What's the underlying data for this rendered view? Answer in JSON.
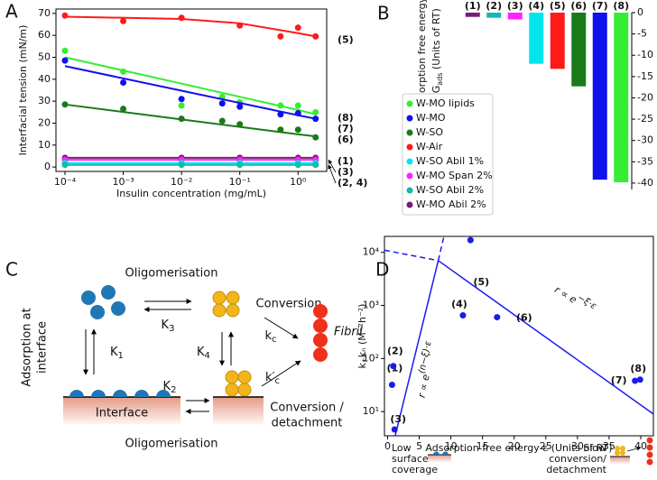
{
  "panel_labels": [
    "A",
    "B",
    "C",
    "D"
  ],
  "chart_data": [
    {
      "type": "line",
      "xlabel": "Insulin concentration (mg/mL)",
      "ylabel": "Interfacial tension (mN/m)",
      "log_x": true,
      "x": [
        0.0001,
        0.001,
        0.01,
        0.05,
        0.1,
        0.5,
        1,
        2
      ],
      "fit_x": [
        0.0001,
        0.01,
        0.1,
        1,
        2
      ],
      "xlim": [
        7e-05,
        3.1
      ],
      "ylim": [
        -2,
        72
      ],
      "xticks": [
        {
          "value": 0.0001,
          "label": "10⁻⁴"
        },
        {
          "value": 0.001,
          "label": "10⁻³"
        },
        {
          "value": 0.01,
          "label": "10⁻²"
        },
        {
          "value": 0.1,
          "label": "10⁻¹"
        },
        {
          "value": 1,
          "label": "10⁰"
        }
      ],
      "yticks": [
        0,
        10,
        20,
        30,
        40,
        50,
        60,
        70
      ],
      "series": [
        {
          "color": "#ff1a1a",
          "label": "(5)",
          "values": [
            69,
            66.5,
            68,
            null,
            64.5,
            59.5,
            63.5,
            59.5
          ],
          "fit_values": [
            68.5,
            67.5,
            65.5,
            61,
            59.5
          ]
        },
        {
          "color": "#33ee33",
          "label": "(8)",
          "values": [
            53,
            43.5,
            28,
            32,
            29.5,
            28,
            28,
            25
          ],
          "fit_values": [
            50,
            38,
            32,
            26,
            24
          ]
        },
        {
          "color": "#1010ee",
          "label": "(7)",
          "values": [
            48.5,
            38.5,
            31,
            29,
            27.5,
            24,
            24.5,
            22
          ],
          "fit_values": [
            46,
            34.8,
            29.2,
            23.6,
            22
          ]
        },
        {
          "color": "#1a7a1a",
          "label": "(6)",
          "values": [
            28.5,
            26.5,
            22,
            21,
            19.5,
            17,
            17,
            13.5
          ],
          "fit_values": [
            28.5,
            21.7,
            18.3,
            14.9,
            14
          ]
        },
        {
          "color": "#7a1a7a",
          "label": "(1)",
          "values": [
            4.2,
            null,
            4.2,
            null,
            4.2,
            null,
            4.2,
            4.2
          ],
          "fit_values": [
            4.2,
            4.2,
            4.2,
            4.2,
            4.2
          ]
        },
        {
          "color": "#ff22ff",
          "label": "(3)",
          "values": [
            3.3,
            null,
            3.3,
            null,
            3.3,
            null,
            3.3,
            3.3
          ],
          "fit_values": [
            3.3,
            3.3,
            3.3,
            3.3,
            3.3
          ]
        },
        {
          "color": "#00e5ee",
          "values": [
            1.8,
            null,
            1.8,
            null,
            1.8,
            null,
            1.8,
            1.8
          ],
          "fit_values": [
            1.8,
            1.8,
            1.8,
            1.8,
            1.8
          ]
        },
        {
          "color": "#11bbaa",
          "label": "(2, 4)",
          "values": [
            1,
            null,
            1,
            null,
            1,
            null,
            1,
            1
          ],
          "fit_values": [
            1,
            1,
            1,
            1,
            1
          ]
        }
      ]
    },
    {
      "type": "bar",
      "ylabel": "Adsorption free energy",
      "ylabel_2": [
        "ΔG",
        "ads",
        " (Units of RT)"
      ],
      "categories": [
        "(1)",
        "(2)",
        "(3)",
        "(4)",
        "(5)",
        "(6)",
        "(7)",
        "(8)"
      ],
      "values": [
        -1,
        -1.2,
        -1.6,
        -12,
        -13.2,
        -17.3,
        -39.2,
        -39.8
      ],
      "colors": [
        "#7a1a7a",
        "#11bbaa",
        "#ff22ff",
        "#00e5ee",
        "#ff1a1a",
        "#1a7a1a",
        "#1010ee",
        "#33ee33"
      ],
      "ylim": [
        -41.5,
        0
      ],
      "yticks": [
        0,
        -5,
        -10,
        -15,
        -20,
        -25,
        -30,
        -35,
        -40
      ],
      "legend": [
        {
          "name": "W-MO lipids",
          "color": "#33ee33"
        },
        {
          "name": "W-MO",
          "color": "#1010ee"
        },
        {
          "name": "W-SO",
          "color": "#1a7a1a"
        },
        {
          "name": "W-Air",
          "color": "#ff1a1a"
        },
        {
          "name": "W-SO Abil 1%",
          "color": "#00e5ee"
        },
        {
          "name": "W-MO Span 2%",
          "color": "#ff22ff"
        },
        {
          "name": "W-SO Abil 2%",
          "color": "#11bbaa"
        },
        {
          "name": "W-MO Abil 2%",
          "color": "#7a1a7a"
        }
      ]
    },
    {
      "type": "scatter",
      "log_y": true,
      "xlabel": "Adsorption free energy ε (Units of RT)",
      "ylabel": "k₊kₙ (M⁻²h⁻²)",
      "color": "#1a1aee",
      "x": [
        0.7,
        0.9,
        1.1,
        11.9,
        13.1,
        17.3,
        39.1,
        39.9
      ],
      "values": [
        32,
        72,
        4.6,
        650,
        17000,
        600,
        38,
        40
      ],
      "point_labels": [
        "(1)",
        "(2)",
        "(3)",
        "(4)",
        "(5)",
        "(6)",
        "(7)",
        "(8)"
      ],
      "xlim": [
        -0.5,
        42
      ],
      "ylim": [
        3.5,
        20000
      ],
      "xticks": [
        0,
        5,
        10,
        15,
        20,
        25,
        30,
        35,
        40
      ],
      "yticks": [
        {
          "value": 10,
          "label": "10¹"
        },
        {
          "value": 100,
          "label": "10²"
        },
        {
          "value": 1000,
          "label": "10³"
        },
        {
          "value": 10000,
          "label": "10⁴"
        }
      ],
      "fit_lines": [
        {
          "x": [
            1.2,
            8
          ],
          "values": [
            3.5,
            7000
          ],
          "dashed": false
        },
        {
          "x": [
            8,
            8.9
          ],
          "values": [
            7000,
            20000
          ],
          "dashed": true
        },
        {
          "x": [
            8,
            42
          ],
          "values": [
            7000,
            9
          ],
          "dashed": false
        },
        {
          "x": [
            -0.5,
            8
          ],
          "values": [
            11000,
            7000
          ],
          "dashed": true
        }
      ],
      "annotations": [
        {
          "text": "r ∝ e",
          "exponent": "(n−ξ)·ε"
        },
        {
          "text": "r ∝ e",
          "exponent": "−ξ·ε"
        }
      ]
    }
  ],
  "diagram": {
    "oligomerisation_top": "Oligomerisation",
    "oligomerisation_bottom": "Oligomerisation",
    "adsorption": [
      "Adsorption at",
      "interface"
    ],
    "interface": "Interface",
    "conversion": "Conversion",
    "conversion_detachment": [
      "Conversion /",
      "detachment"
    ],
    "fibril": "Fibril",
    "rates": {
      "k1": {
        "main": "K",
        "sub": "1"
      },
      "k2": {
        "main": "K",
        "sub": "2"
      },
      "k3": {
        "main": "K",
        "sub": "3"
      },
      "k4": {
        "main": "K",
        "sub": "4"
      },
      "kc": {
        "main": "k",
        "sub": "c"
      },
      "kc_prime": {
        "main": "k′",
        "sub": "c"
      }
    }
  },
  "notes": {
    "low": [
      "Low",
      "surface",
      "coverage"
    ],
    "slow": [
      "Slow",
      "conversion/",
      "detachment"
    ]
  }
}
